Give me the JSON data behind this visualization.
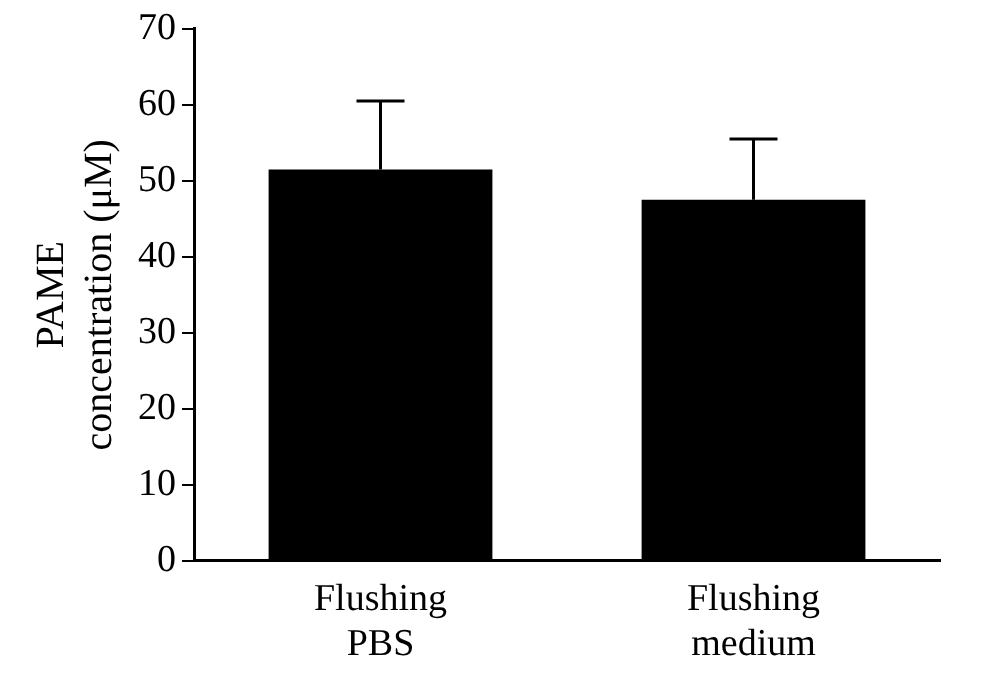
{
  "chart_data": {
    "type": "bar",
    "ylabel": "PAME\nconcentration (μM)",
    "categories": [
      "Flushing\nPBS",
      "Flushing\nmedium"
    ],
    "values": [
      51.5,
      47.5
    ],
    "color": "#000000",
    "errors": [
      [
        51.5,
        60.5
      ],
      [
        47.5,
        55.5
      ]
    ],
    "ylim": [
      0,
      70
    ],
    "yticks": [
      0,
      10,
      20,
      30,
      40,
      50,
      60,
      70
    ],
    "grid": false,
    "legend": false
  }
}
